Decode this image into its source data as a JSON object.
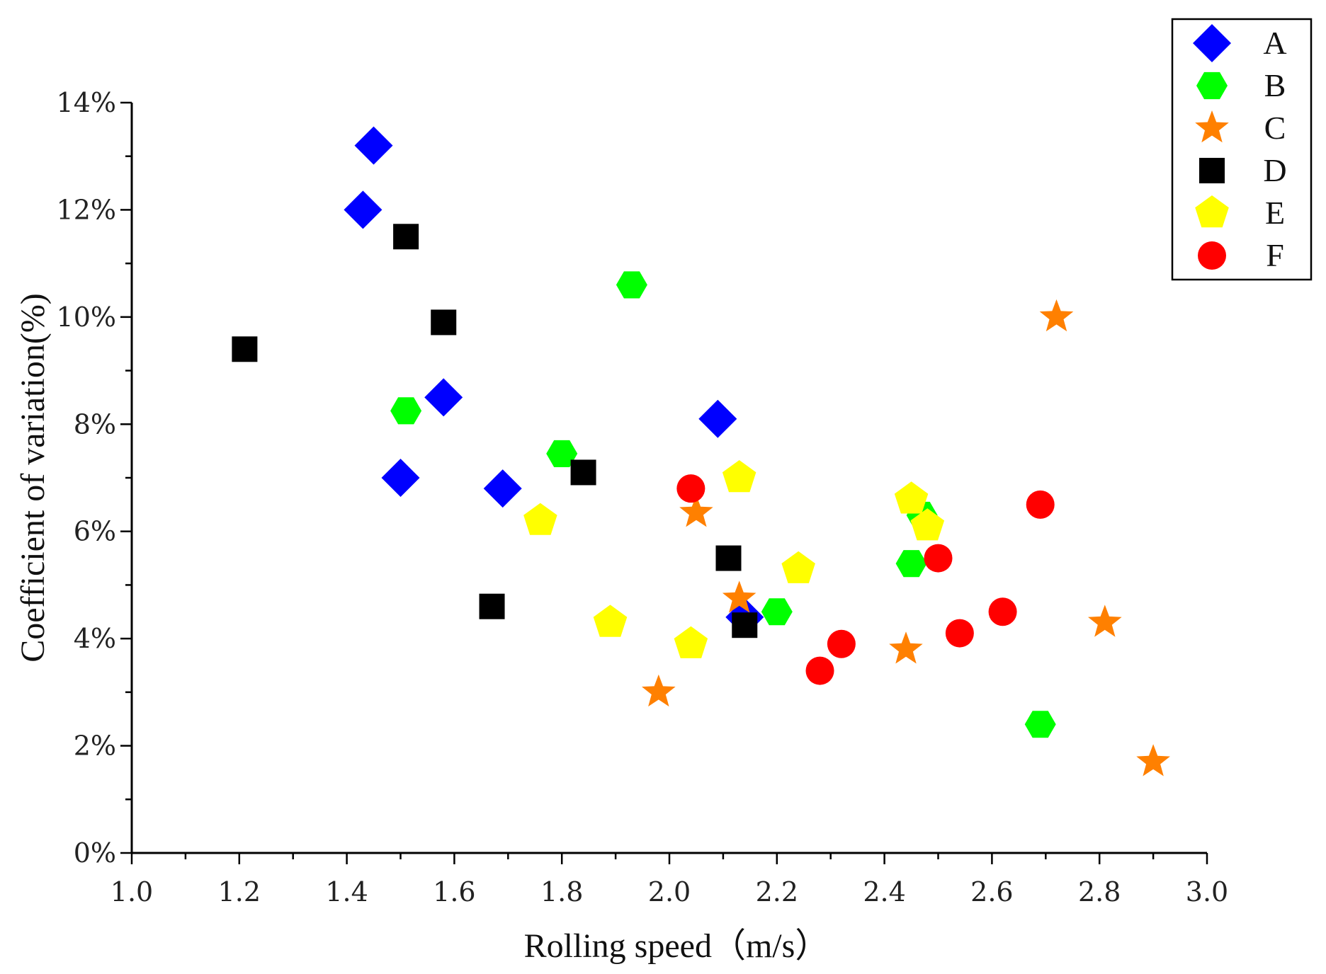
{
  "chart_data": {
    "type": "scatter",
    "title": "",
    "xlabel": "Rolling speed（m/s）",
    "ylabel": "Coefficient of variation(%)",
    "xlim": [
      1.0,
      3.0
    ],
    "ylim": [
      0,
      14
    ],
    "x_ticks": [
      "1.0",
      "1.2",
      "1.4",
      "1.6",
      "1.8",
      "2.0",
      "2.2",
      "2.4",
      "2.6",
      "2.8",
      "3.0"
    ],
    "y_ticks": [
      "0%",
      "2%",
      "4%",
      "6%",
      "8%",
      "10%",
      "12%",
      "14%"
    ],
    "grid": false,
    "legend_position": "top-right",
    "series": [
      {
        "name": "A",
        "marker": "diamond",
        "color": "#0000ff",
        "points": [
          [
            1.43,
            12.0
          ],
          [
            1.45,
            13.2
          ],
          [
            1.5,
            7.0
          ],
          [
            1.58,
            8.5
          ],
          [
            1.69,
            6.8
          ],
          [
            2.09,
            8.1
          ],
          [
            2.14,
            4.4
          ]
        ]
      },
      {
        "name": "B",
        "marker": "hexagon",
        "color": "#00ff00",
        "points": [
          [
            1.51,
            8.25
          ],
          [
            1.8,
            7.45
          ],
          [
            1.93,
            10.6
          ],
          [
            2.2,
            4.5
          ],
          [
            2.45,
            5.4
          ],
          [
            2.47,
            6.3
          ],
          [
            2.69,
            2.4
          ]
        ]
      },
      {
        "name": "C",
        "marker": "star",
        "color": "#ff8000",
        "points": [
          [
            1.98,
            3.0
          ],
          [
            2.05,
            6.35
          ],
          [
            2.13,
            4.75
          ],
          [
            2.44,
            3.8
          ],
          [
            2.72,
            10.0
          ],
          [
            2.81,
            4.3
          ],
          [
            2.9,
            1.7
          ]
        ]
      },
      {
        "name": "D",
        "marker": "square",
        "color": "#000000",
        "points": [
          [
            1.21,
            9.4
          ],
          [
            1.51,
            11.5
          ],
          [
            1.58,
            9.9
          ],
          [
            1.67,
            4.6
          ],
          [
            1.84,
            7.1
          ],
          [
            2.11,
            5.5
          ],
          [
            2.14,
            4.25
          ]
        ]
      },
      {
        "name": "E",
        "marker": "pentagon",
        "color": "#ffff00",
        "points": [
          [
            1.76,
            6.2
          ],
          [
            1.89,
            4.3
          ],
          [
            2.04,
            3.9
          ],
          [
            2.13,
            7.0
          ],
          [
            2.24,
            5.3
          ],
          [
            2.45,
            6.6
          ],
          [
            2.48,
            6.1
          ]
        ]
      },
      {
        "name": "F",
        "marker": "circle",
        "color": "#ff0000",
        "points": [
          [
            2.04,
            6.8
          ],
          [
            2.28,
            3.4
          ],
          [
            2.32,
            3.9
          ],
          [
            2.5,
            5.5
          ],
          [
            2.54,
            4.1
          ],
          [
            2.62,
            4.5
          ],
          [
            2.69,
            6.5
          ]
        ]
      }
    ]
  }
}
